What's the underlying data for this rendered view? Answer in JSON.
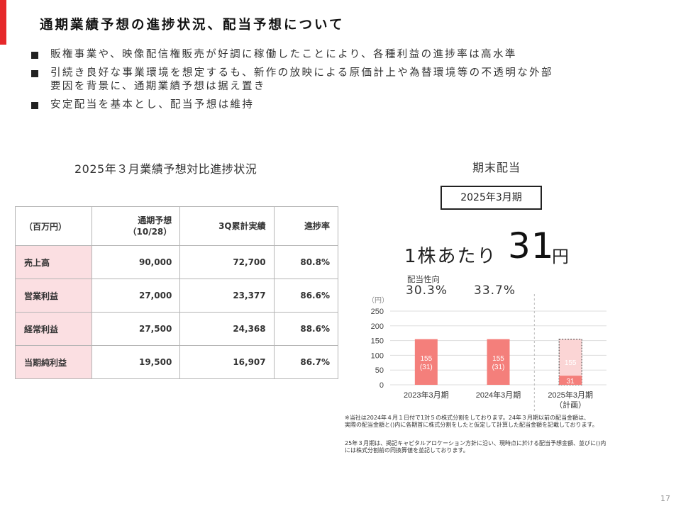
{
  "title": "通期業績予想の進捗状況、配当予想について",
  "bullets": [
    "販権事業や、映像配信権販売が好調に稼働したことにより、各種利益の進捗率は高水準",
    "引続き良好な事業環境を想定するも、新作の放映による原価計上や為替環境等の不透明な外部\n要因を背景に、通期業績予想は据え置き",
    "安定配当を基本とし、配当予想は維持"
  ],
  "table": {
    "heading": "2025年３月業績予想対比進捗状況",
    "headers": {
      "unit": "（百万円）",
      "forecast": "通期予想",
      "forecast_note": "（10/28）",
      "actual": "3Q累計実績",
      "progress": "進捗率"
    },
    "rows": [
      {
        "label": "売上高",
        "forecast": "90,000",
        "actual": "72,700",
        "progress": "80.8%"
      },
      {
        "label": "営業利益",
        "forecast": "27,000",
        "actual": "23,377",
        "progress": "86.6%"
      },
      {
        "label": "経常利益",
        "forecast": "27,500",
        "actual": "24,368",
        "progress": "88.6%"
      },
      {
        "label": "当期純利益",
        "forecast": "19,500",
        "actual": "16,907",
        "progress": "86.7%"
      }
    ]
  },
  "dividend": {
    "heading": "期末配当",
    "period": "2025年3月期",
    "per_share_label": "1株あたり",
    "amount": "31",
    "unit": "円",
    "payout_label": "配当性向",
    "payout_ratios": [
      "30.3%",
      "33.7%"
    ]
  },
  "chart_data": {
    "type": "bar",
    "unit_label": "（円）",
    "ylim": [
      0,
      250
    ],
    "yticks": [
      0,
      50,
      100,
      150,
      200,
      250
    ],
    "grid": true,
    "categories": [
      "2023年3月期",
      "2024年3月期",
      "2025年3月期"
    ],
    "category_sublabels": [
      "",
      "",
      "（計画）"
    ],
    "values": [
      155,
      155,
      155
    ],
    "bar_labels": [
      "155\n(31)",
      "155\n(31)",
      "155"
    ],
    "planned": {
      "category": "2025年3月期",
      "actual_value": 31,
      "actual_label": "31"
    },
    "colors": {
      "bar": "#f47f7b",
      "planned": "#fbd5d5",
      "grid": "#dddddd"
    }
  },
  "footnotes": [
    "※当社は2024年４月１日付で1対５の株式分割をしております。24年３月期以前の配当金額は、\n実際の配当金額と()内に各期首に株式分割をしたと仮定して計算した配当金額を記載しております。",
    "25年３月期は、掲記キャピタルアロケーション方針に沿い、現時点に於ける配当予想金額、並びに()内\nには株式分割前の同換算値を並記しております。"
  ],
  "page_number": "17"
}
